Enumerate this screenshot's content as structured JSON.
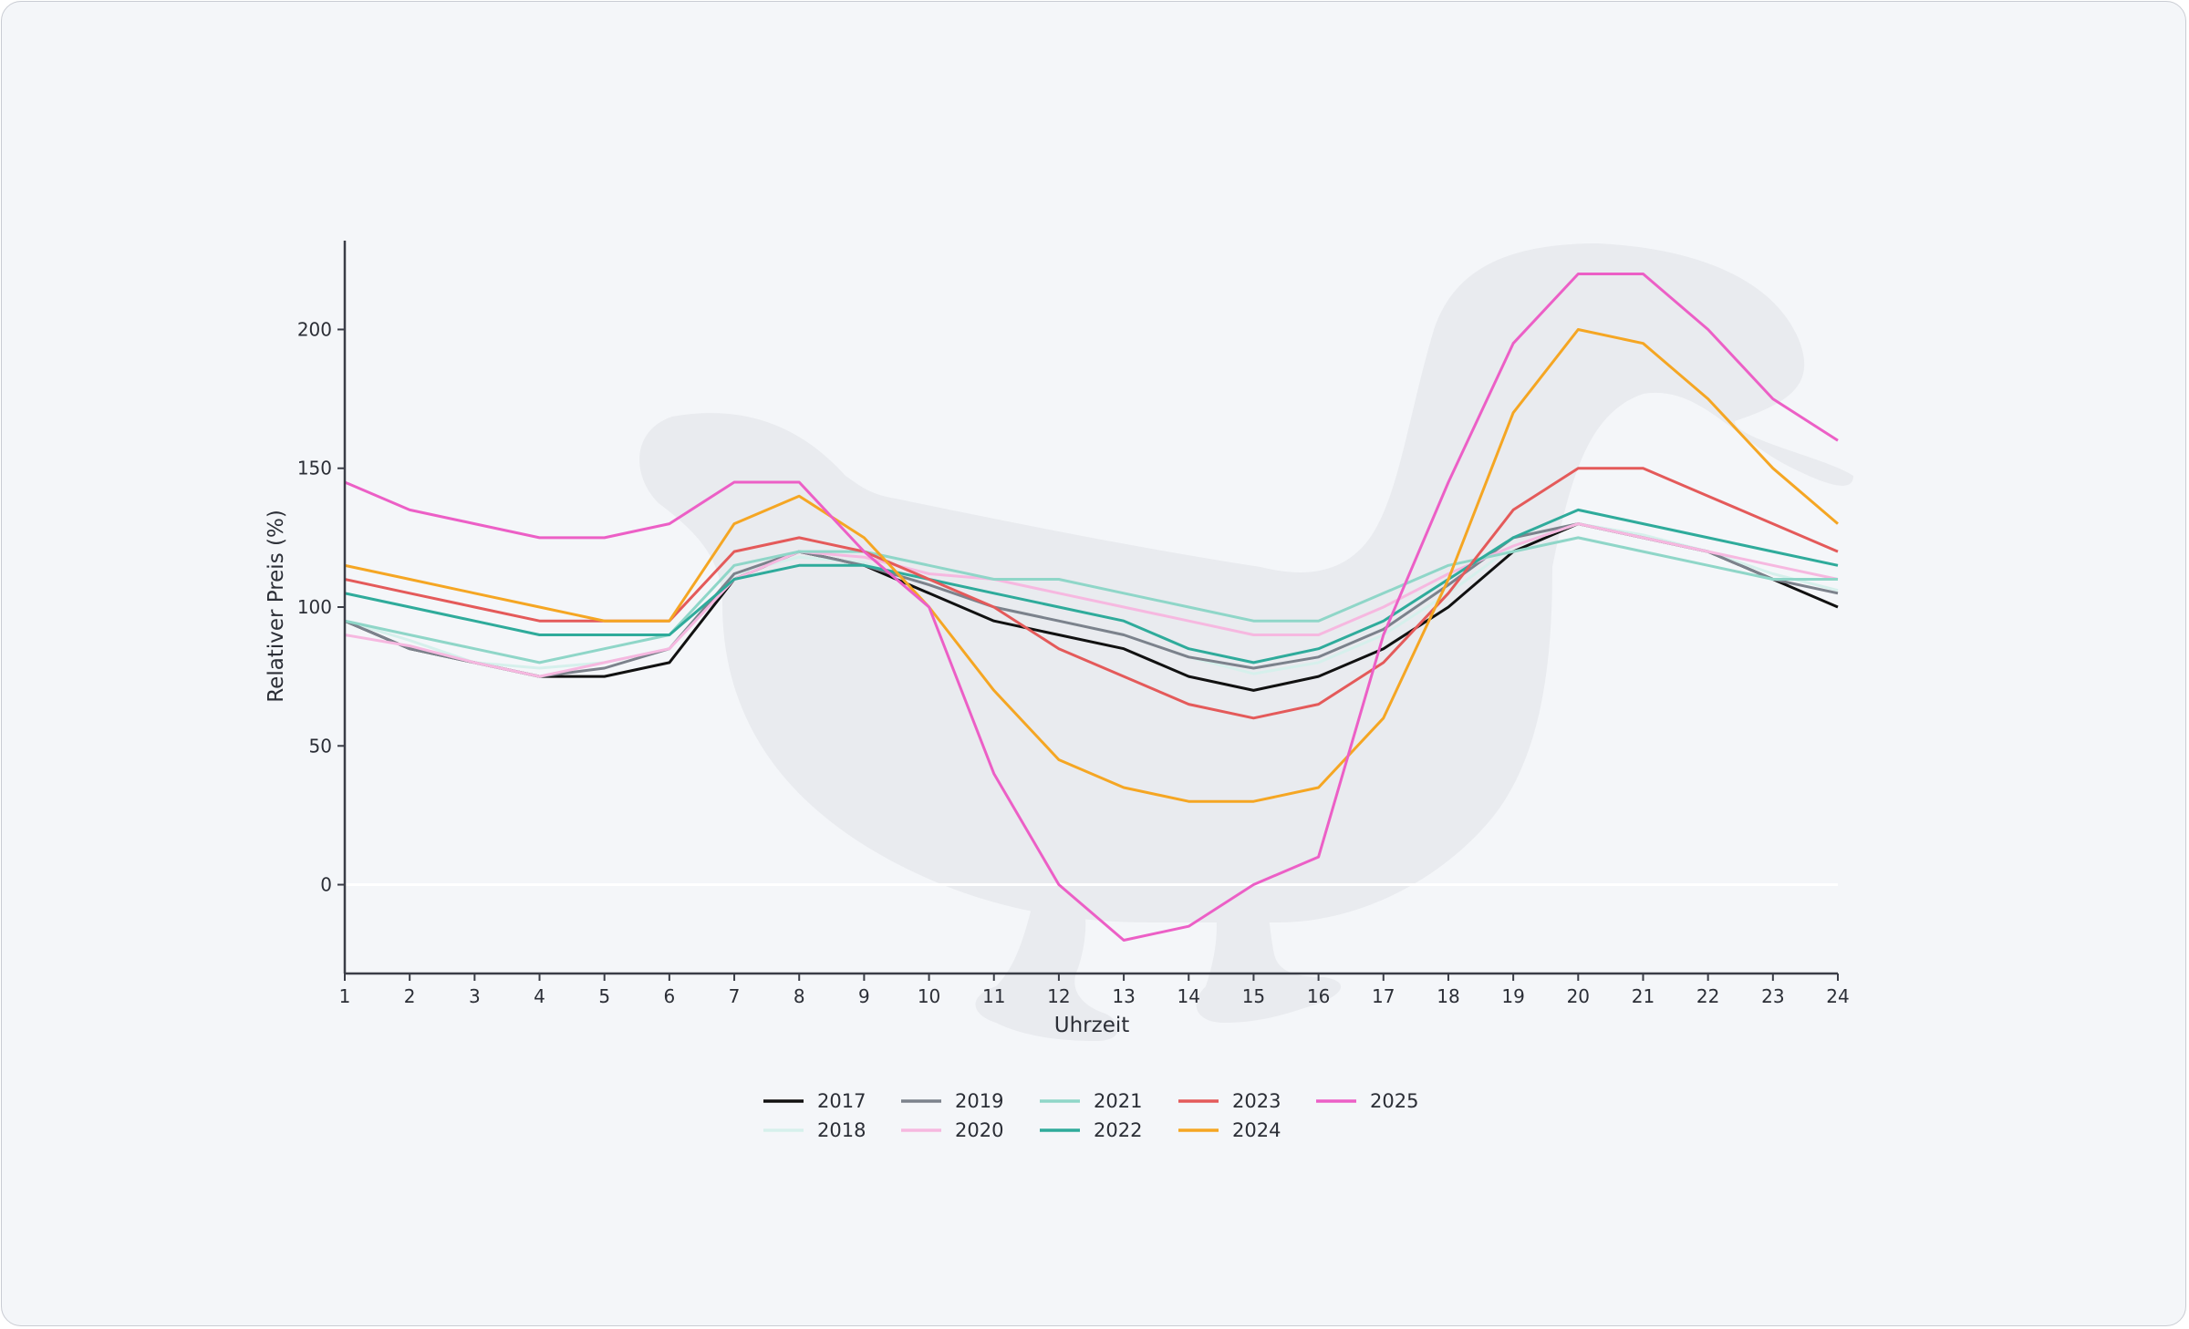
{
  "chart_data": {
    "type": "line",
    "title": "",
    "xlabel": "Uhrzeit",
    "ylabel": "Relativer Preis (%)",
    "x": [
      1,
      2,
      3,
      4,
      5,
      6,
      7,
      8,
      9,
      10,
      11,
      12,
      13,
      14,
      15,
      16,
      17,
      18,
      19,
      20,
      21,
      22,
      23,
      24
    ],
    "xlim": [
      1,
      24
    ],
    "ylim": [
      -32,
      232
    ],
    "yticks": [
      0,
      50,
      100,
      150,
      200
    ],
    "grid": false,
    "legend": "bottom-center",
    "series": [
      {
        "name": "2017",
        "color": "#111111",
        "values": [
          95,
          85,
          80,
          75,
          75,
          80,
          110,
          120,
          115,
          105,
          95,
          90,
          85,
          75,
          70,
          75,
          85,
          100,
          120,
          130,
          125,
          120,
          110,
          100
        ]
      },
      {
        "name": "2018",
        "color": "#d6f0ec",
        "values": [
          95,
          88,
          80,
          78,
          80,
          85,
          112,
          118,
          116,
          108,
          100,
          95,
          90,
          82,
          76,
          80,
          90,
          105,
          122,
          130,
          126,
          120,
          112,
          106
        ]
      },
      {
        "name": "2019",
        "color": "#7c828c",
        "values": [
          95,
          85,
          80,
          75,
          78,
          85,
          112,
          120,
          115,
          108,
          100,
          95,
          90,
          82,
          78,
          82,
          92,
          108,
          125,
          130,
          125,
          120,
          110,
          105
        ]
      },
      {
        "name": "2020",
        "color": "#f6b8e0",
        "values": [
          90,
          86,
          80,
          75,
          80,
          85,
          110,
          120,
          118,
          112,
          110,
          105,
          100,
          95,
          90,
          90,
          100,
          112,
          122,
          130,
          125,
          120,
          115,
          110
        ]
      },
      {
        "name": "2021",
        "color": "#8fd6c8",
        "values": [
          95,
          90,
          85,
          80,
          85,
          90,
          115,
          120,
          120,
          115,
          110,
          110,
          105,
          100,
          95,
          95,
          105,
          115,
          120,
          125,
          120,
          115,
          110,
          110
        ]
      },
      {
        "name": "2022",
        "color": "#2fab9b",
        "values": [
          105,
          100,
          95,
          90,
          90,
          90,
          110,
          115,
          115,
          110,
          105,
          100,
          95,
          85,
          80,
          85,
          95,
          110,
          125,
          135,
          130,
          125,
          120,
          115
        ]
      },
      {
        "name": "2023",
        "color": "#e45a5a",
        "values": [
          110,
          105,
          100,
          95,
          95,
          95,
          120,
          125,
          120,
          110,
          100,
          85,
          75,
          65,
          60,
          65,
          80,
          105,
          135,
          150,
          150,
          140,
          130,
          120
        ]
      },
      {
        "name": "2024",
        "color": "#f5a623",
        "values": [
          115,
          110,
          105,
          100,
          95,
          95,
          130,
          140,
          125,
          100,
          70,
          45,
          35,
          30,
          30,
          35,
          60,
          110,
          170,
          200,
          195,
          175,
          150,
          130
        ]
      },
      {
        "name": "2025",
        "color": "#ec5fc6",
        "values": [
          145,
          135,
          130,
          125,
          125,
          130,
          145,
          145,
          120,
          100,
          40,
          0,
          -20,
          -15,
          0,
          10,
          90,
          145,
          195,
          220,
          220,
          200,
          175,
          160
        ]
      }
    ]
  }
}
